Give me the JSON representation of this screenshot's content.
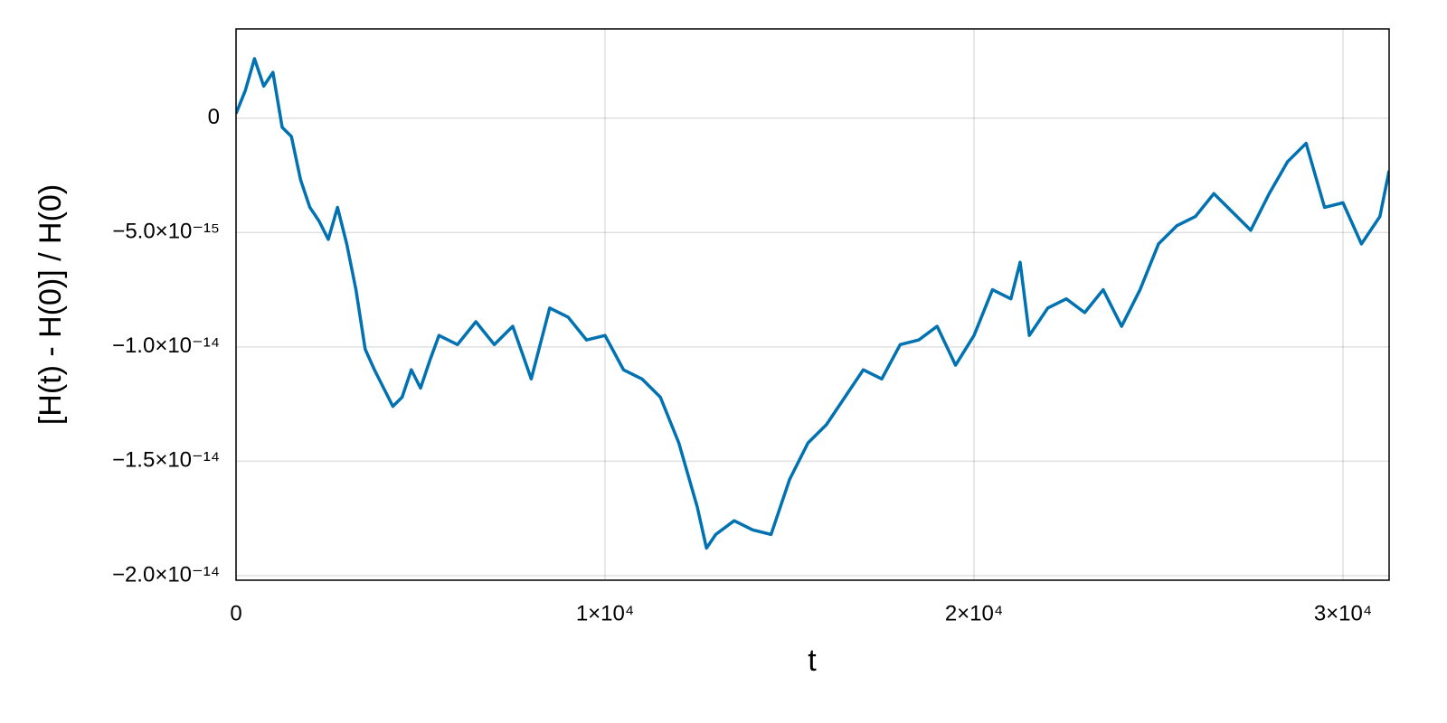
{
  "chart_data": {
    "type": "line",
    "x_label": "t",
    "y_label": "[H(t) - H(0)] / H(0)",
    "x": [
      0,
      250,
      500,
      750,
      1000,
      1250,
      1500,
      1750,
      2000,
      2250,
      2500,
      2750,
      3000,
      3250,
      3500,
      3750,
      4000,
      4250,
      4500,
      4750,
      5000,
      5250,
      5500,
      6000,
      6500,
      7000,
      7500,
      8000,
      8500,
      9000,
      9500,
      10000,
      10500,
      11000,
      11500,
      12000,
      12500,
      12750,
      13000,
      13500,
      14000,
      14500,
      15000,
      15500,
      16000,
      16500,
      17000,
      17500,
      18000,
      18500,
      19000,
      19500,
      20000,
      20500,
      21000,
      21250,
      21500,
      22000,
      22500,
      23000,
      23500,
      24000,
      24500,
      25000,
      25500,
      26000,
      26500,
      27000,
      27500,
      28000,
      28500,
      29000,
      29500,
      30000,
      30500,
      31000,
      31250
    ],
    "series": [
      {
        "color": "#0072b2",
        "values": [
          2e-16,
          1.2e-15,
          2.6e-15,
          1.4e-15,
          2e-15,
          -4e-16,
          -8e-16,
          -2.7e-15,
          -3.9e-15,
          -4.5e-15,
          -5.3e-15,
          -3.9e-15,
          -5.5e-15,
          -7.5e-15,
          -1.01e-14,
          -1.1e-14,
          -1.18e-14,
          -1.26e-14,
          -1.22e-14,
          -1.1e-14,
          -1.18e-14,
          -1.06e-14,
          -9.5e-15,
          -9.9e-15,
          -8.9e-15,
          -9.9e-15,
          -9.1e-15,
          -1.14e-14,
          -8.3e-15,
          -8.7e-15,
          -9.7e-15,
          -9.5e-15,
          -1.1e-14,
          -1.14e-14,
          -1.22e-14,
          -1.42e-14,
          -1.7e-14,
          -1.88e-14,
          -1.82e-14,
          -1.76e-14,
          -1.8e-14,
          -1.82e-14,
          -1.58e-14,
          -1.42e-14,
          -1.34e-14,
          -1.22e-14,
          -1.1e-14,
          -1.14e-14,
          -9.9e-15,
          -9.7e-15,
          -9.1e-15,
          -1.08e-14,
          -9.5e-15,
          -7.5e-15,
          -7.9e-15,
          -6.3e-15,
          -9.5e-15,
          -8.3e-15,
          -7.9e-15,
          -8.5e-15,
          -7.5e-15,
          -9.1e-15,
          -7.5e-15,
          -5.5e-15,
          -4.7e-15,
          -4.3e-15,
          -3.3e-15,
          -4.1e-15,
          -4.9e-15,
          -3.3e-15,
          -1.9e-15,
          -1.1e-15,
          -3.9e-15,
          -3.7e-15,
          -5.5e-15,
          -4.3e-15,
          -2.3e-15
        ]
      }
    ],
    "xlim": [
      0,
      31250
    ],
    "ylim": [
      -2.02e-14,
      3.9e-15
    ],
    "xticks": [
      0,
      {
        "value": 10000,
        "label": "1×10⁴"
      },
      {
        "value": 20000,
        "label": "2×10⁴"
      },
      {
        "value": 30000,
        "label": "3×10⁴"
      }
    ],
    "yticks": [
      0,
      {
        "value": -5e-15,
        "label": "−5.0×10⁻¹⁵"
      },
      {
        "value": -1e-14,
        "label": "−1.0×10⁻¹⁴"
      },
      {
        "value": -1.5e-14,
        "label": "−1.5×10⁻¹⁴"
      },
      {
        "value": -2e-14,
        "label": "−2.0×10⁻¹⁴"
      }
    ],
    "grid": true
  }
}
